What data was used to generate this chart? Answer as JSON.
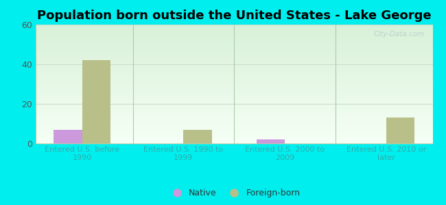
{
  "title": "Population born outside the United States - Lake George",
  "categories": [
    "Entered U.S. before\n1990",
    "Entered U.S. 1990 to\n1999",
    "Entered U.S. 2000 to\n2009",
    "Entered U.S. 2010 or\nlater"
  ],
  "native_values": [
    7,
    0,
    2,
    0
  ],
  "foreign_values": [
    42,
    7,
    0,
    13
  ],
  "native_color": "#cc99dd",
  "foreign_color": "#b8bf88",
  "ylim": [
    0,
    60
  ],
  "yticks": [
    0,
    20,
    40,
    60
  ],
  "bar_width": 0.28,
  "background_color": "#00eeee",
  "watermark": "City-Data.com",
  "title_fontsize": 13,
  "xlabel_color": "#33aaaa",
  "ylabel_color": "#555555",
  "legend_native": "Native",
  "legend_foreign": "Foreign-born",
  "divider_color": "#aaccaa",
  "grid_color": "#ccddcc"
}
